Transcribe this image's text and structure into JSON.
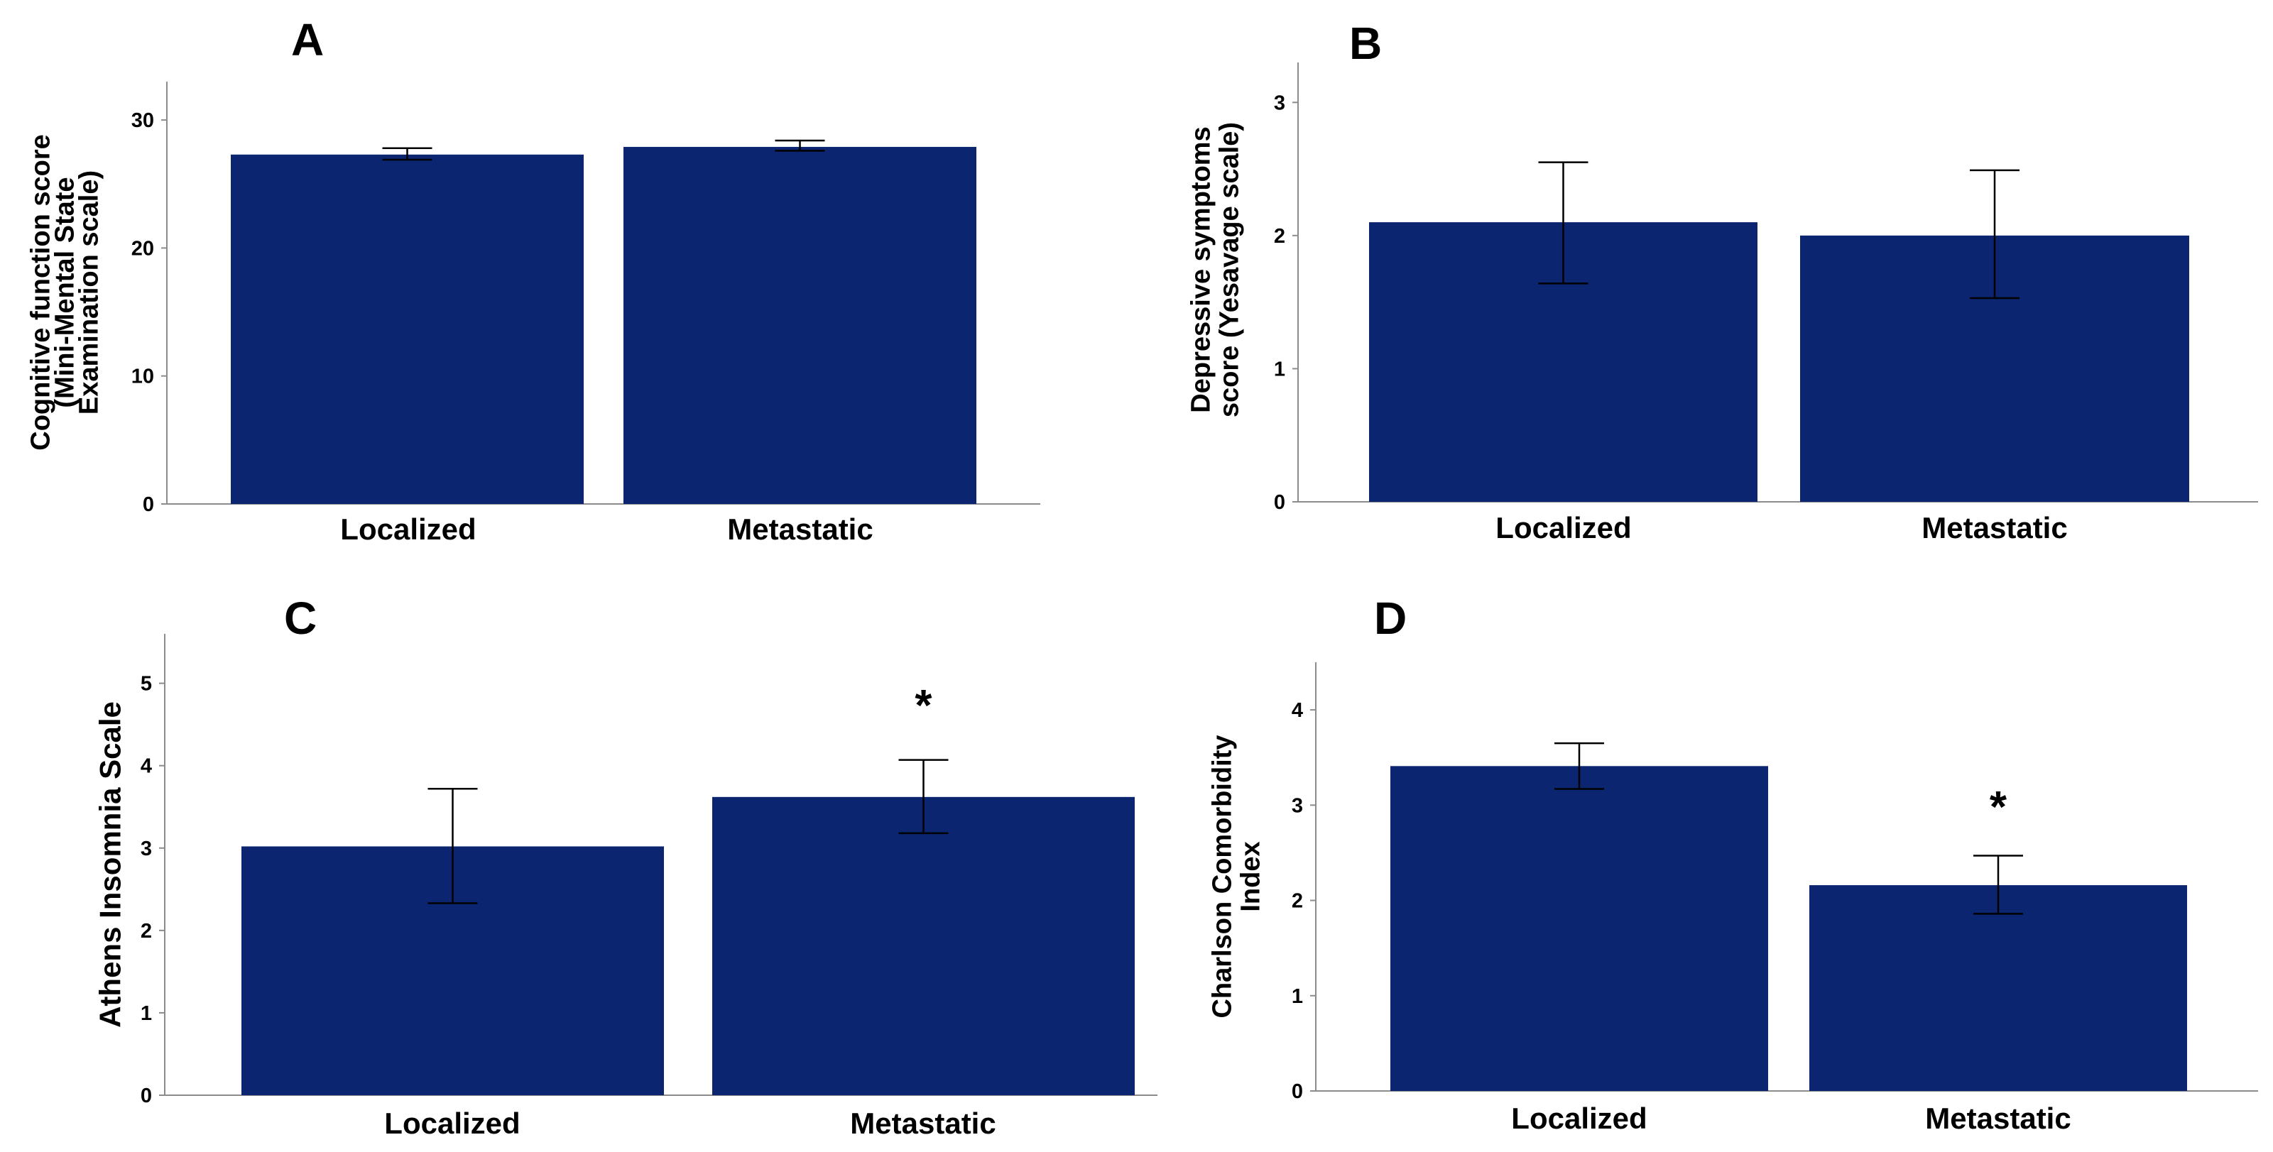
{
  "chart_data": [
    {
      "panel": "A",
      "type": "bar",
      "categories": [
        "Localized",
        "Metastatic"
      ],
      "values": [
        27.3,
        27.9
      ],
      "error_low": [
        26.9,
        27.6
      ],
      "error_high": [
        27.8,
        28.4
      ],
      "ylabel": [
        "Cognitive function score",
        "(Mini-Mental State",
        "Examination scale)"
      ],
      "yticks": [
        0,
        10,
        20,
        30
      ],
      "ylim": [
        0,
        33
      ],
      "annotations": [
        "",
        ""
      ],
      "bar_color": "#0b2570"
    },
    {
      "panel": "B",
      "type": "bar",
      "categories": [
        "Localized",
        "Metastatic"
      ],
      "values": [
        2.1,
        2.0
      ],
      "error_low": [
        1.64,
        1.53
      ],
      "error_high": [
        2.55,
        2.49
      ],
      "ylabel": [
        "Depressive symptoms",
        "score (Yesavage scale)"
      ],
      "yticks": [
        0,
        1,
        2,
        3
      ],
      "ylim": [
        0,
        3.3
      ],
      "annotations": [
        "",
        ""
      ],
      "bar_color": "#0b2570"
    },
    {
      "panel": "C",
      "type": "bar",
      "categories": [
        "Localized",
        "Metastatic"
      ],
      "values": [
        3.02,
        3.62
      ],
      "error_low": [
        2.33,
        3.18
      ],
      "error_high": [
        3.72,
        4.07
      ],
      "ylabel": [
        "Athens Insomnia Scale"
      ],
      "yticks": [
        0,
        1,
        2,
        3,
        4,
        5
      ],
      "ylim": [
        0,
        5.6
      ],
      "annotations": [
        "",
        "*"
      ],
      "bar_color": "#0b2570"
    },
    {
      "panel": "D",
      "type": "bar",
      "categories": [
        "Localized",
        "Metastatic"
      ],
      "values": [
        3.41,
        2.16
      ],
      "error_low": [
        3.17,
        1.86
      ],
      "error_high": [
        3.65,
        2.47
      ],
      "ylabel": [
        "Charlson Comorbidity",
        "Index"
      ],
      "yticks": [
        0,
        1,
        2,
        3,
        4
      ],
      "ylim": [
        0,
        4.5
      ],
      "annotations": [
        "",
        "*"
      ],
      "bar_color": "#0b2570"
    }
  ]
}
